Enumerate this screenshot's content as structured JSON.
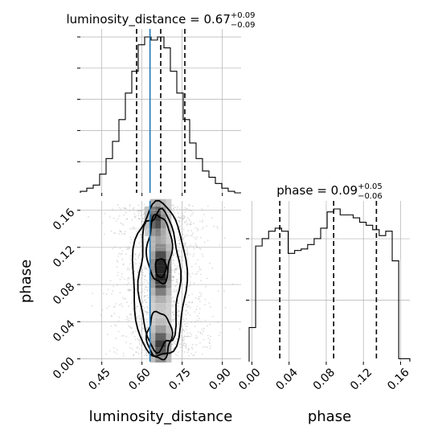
{
  "colors": {
    "truth_line": "#1f77b4",
    "histogram": "#000000",
    "grid": "#b0b0b0",
    "scatter": "#9e9e9e"
  },
  "chart_data": [
    {
      "type": "histogram",
      "panel": "luminosity_distance-marginal",
      "title": {
        "parameter": "luminosity_distance",
        "median": "0.67",
        "plus": "+0.09",
        "minus": "−0.09"
      },
      "xlim": [
        0.37,
        0.97
      ],
      "bin_edges": [
        0.37,
        0.394,
        0.418,
        0.442,
        0.466,
        0.49,
        0.514,
        0.538,
        0.562,
        0.586,
        0.61,
        0.634,
        0.658,
        0.682,
        0.706,
        0.73,
        0.754,
        0.778,
        0.802,
        0.826,
        0.85,
        0.874,
        0.898,
        0.922,
        0.946,
        0.97
      ],
      "counts": [
        1,
        3,
        5,
        12,
        22,
        33,
        47,
        64,
        78,
        95,
        100,
        98,
        100,
        93,
        78,
        64,
        47,
        32,
        22,
        14,
        10,
        6,
        3,
        1,
        0
      ],
      "quantile_lines": [
        0.58,
        0.67,
        0.76
      ],
      "truth": 0.63,
      "grid": true
    },
    {
      "type": "scatter",
      "panel": "luminosity_distance-vs-phase",
      "plot_style": "2d histogram with density contours and scatter points",
      "xlabel": "luminosity_distance",
      "ylabel": "phase",
      "xlim": [
        0.37,
        0.97
      ],
      "ylim": [
        -0.003,
        0.17
      ],
      "xticks": [
        "0.45",
        "0.60",
        "0.75",
        "0.90"
      ],
      "xtick_values": [
        0.45,
        0.6,
        0.75,
        0.9
      ],
      "yticks": [
        "0.00",
        "0.04",
        "0.08",
        "0.12",
        "0.16"
      ],
      "ytick_values": [
        0.0,
        0.04,
        0.08,
        0.12,
        0.16
      ],
      "truth_x": 0.63,
      "density_peaks": [
        {
          "x": 0.67,
          "y": 0.085
        },
        {
          "x": 0.67,
          "y": 0.105
        },
        {
          "x": 0.65,
          "y": 0.15
        },
        {
          "x": 0.67,
          "y": 0.015
        }
      ],
      "grid": true
    },
    {
      "type": "histogram",
      "panel": "phase-marginal",
      "title": {
        "parameter": "phase",
        "median": "0.09",
        "plus": "+0.05",
        "minus": "−0.06"
      },
      "xlabel": "phase",
      "xlim": [
        -0.003,
        0.17
      ],
      "xticks": [
        "0.00",
        "0.04",
        "0.08",
        "0.12",
        "0.16"
      ],
      "xtick_values": [
        0.0,
        0.04,
        0.08,
        0.12,
        0.16
      ],
      "bin_edges": [
        -0.003,
        0.004,
        0.011,
        0.018,
        0.025,
        0.032,
        0.039,
        0.046,
        0.053,
        0.06,
        0.067,
        0.074,
        0.081,
        0.088,
        0.095,
        0.102,
        0.109,
        0.116,
        0.123,
        0.13,
        0.137,
        0.144,
        0.151,
        0.158,
        0.165,
        0.17
      ],
      "counts": [
        23,
        78,
        83,
        88,
        90,
        88,
        73,
        75,
        76,
        79,
        83,
        90,
        101,
        103,
        99,
        99,
        97,
        94,
        92,
        89,
        85,
        88,
        68,
        2,
        2
      ],
      "quantile_lines": [
        0.03,
        0.088,
        0.134
      ],
      "grid": true
    }
  ]
}
